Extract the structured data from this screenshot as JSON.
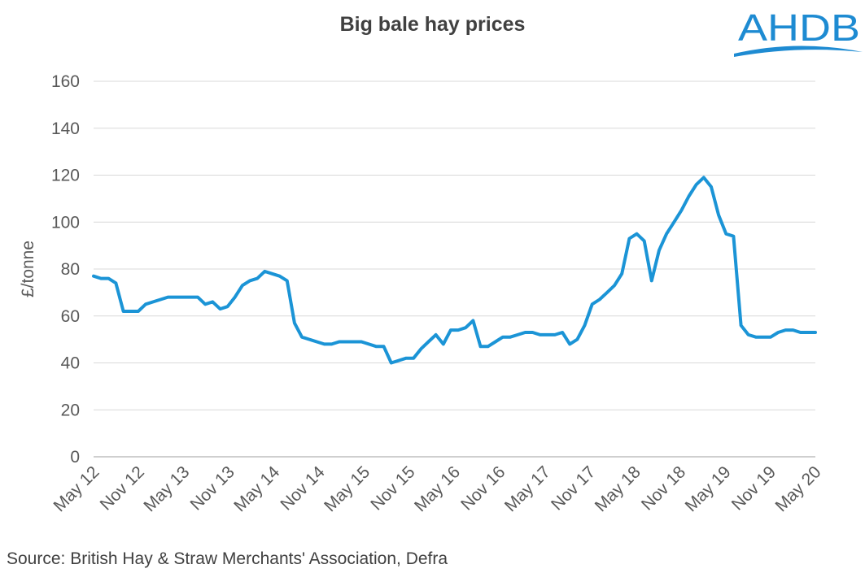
{
  "logo": {
    "text": "AHDB",
    "color": "#1e8bd2",
    "swoosh_color": "#1e8bd2"
  },
  "source": "Source: British Hay & Straw Merchants' Association, Defra",
  "chart_data": {
    "type": "line",
    "title": "Big bale hay prices",
    "ylabel": "£/tonne",
    "xlabel": "",
    "ylim": [
      0,
      160
    ],
    "yticks": [
      0,
      20,
      40,
      60,
      80,
      100,
      120,
      140,
      160
    ],
    "grid": true,
    "legend": "none",
    "line_color": "#1b94d6",
    "x_start": "May 12",
    "x_tick_labels": [
      "May 12",
      "Nov 12",
      "May 13",
      "Nov 13",
      "May 14",
      "Nov 14",
      "May 15",
      "Nov 15",
      "May 16",
      "Nov 16",
      "May 17",
      "Nov 17",
      "May 18",
      "Nov 18",
      "May 19",
      "Nov 19",
      "May 20"
    ],
    "series": [
      {
        "values": [
          77,
          76,
          76,
          74,
          62,
          62,
          62,
          65,
          66,
          67,
          68,
          68,
          68,
          68,
          68,
          65,
          66,
          63,
          64,
          68,
          73,
          75,
          76,
          79,
          78,
          77,
          75,
          57,
          51,
          50,
          49,
          48,
          48,
          49,
          49,
          49,
          49,
          48,
          47,
          47,
          40,
          41,
          42,
          42,
          46,
          49,
          52,
          48,
          54,
          54,
          55,
          58,
          47,
          47,
          49,
          51,
          51,
          52,
          53,
          53,
          52,
          52,
          52,
          53,
          48,
          50,
          56,
          65,
          67,
          70,
          73,
          78,
          93,
          95,
          92,
          75,
          88,
          95,
          100,
          105,
          111,
          116,
          119,
          115,
          103,
          95,
          94,
          56,
          52,
          51,
          51,
          51,
          53,
          54,
          54,
          53,
          53,
          53
        ]
      }
    ]
  }
}
